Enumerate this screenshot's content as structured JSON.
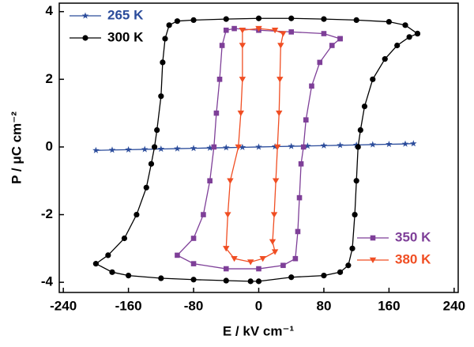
{
  "chart_data": {
    "type": "line",
    "xlabel": "E / kV cm⁻¹",
    "ylabel": "P / μC cm⁻²",
    "xlim": [
      -245,
      245
    ],
    "ylim": [
      -4.3,
      4.25
    ],
    "xticks": [
      -240,
      -160,
      -80,
      0,
      80,
      160,
      240
    ],
    "yticks": [
      -4,
      -2,
      0,
      2,
      4
    ],
    "series": [
      {
        "name": "265 K",
        "color": "#2b4c9b",
        "marker": "star",
        "legend": "upper left",
        "x": [
          -200,
          -180,
          -160,
          -140,
          -120,
          -100,
          -80,
          -60,
          -40,
          -20,
          0,
          20,
          40,
          60,
          80,
          100,
          120,
          140,
          160,
          180,
          190
        ],
        "values": [
          -0.1,
          -0.09,
          -0.08,
          -0.07,
          -0.06,
          -0.05,
          -0.04,
          -0.03,
          -0.02,
          -0.01,
          0,
          0.01,
          0.02,
          0.03,
          0.04,
          0.05,
          0.06,
          0.07,
          0.08,
          0.09,
          0.1
        ]
      },
      {
        "name": "300 K",
        "color": "#000000",
        "marker": "circle",
        "legend": "upper left",
        "x": [
          195,
          180,
          160,
          120,
          80,
          40,
          0,
          -40,
          -80,
          -100,
          -110,
          -115,
          -118,
          -120,
          -125,
          -128,
          -132,
          -138,
          -150,
          -165,
          -185,
          -200,
          -180,
          -160,
          -120,
          -80,
          -40,
          -10,
          0,
          40,
          80,
          100,
          110,
          115,
          118,
          120,
          122,
          125,
          130,
          140,
          155,
          170,
          185,
          195
        ],
        "values": [
          3.35,
          3.6,
          3.7,
          3.75,
          3.78,
          3.8,
          3.8,
          3.78,
          3.75,
          3.72,
          3.6,
          3.2,
          2.5,
          1.5,
          0.5,
          0,
          -0.5,
          -1.2,
          -2,
          -2.7,
          -3.2,
          -3.45,
          -3.7,
          -3.8,
          -3.88,
          -3.92,
          -3.95,
          -3.97,
          -3.97,
          -3.85,
          -3.8,
          -3.7,
          -3.5,
          -3,
          -2,
          -1,
          0,
          0.5,
          1.2,
          2,
          2.6,
          3,
          3.25,
          3.35
        ]
      },
      {
        "name": "350 K",
        "color": "#7e3f98",
        "marker": "square",
        "legend": "lower right",
        "x": [
          100,
          80,
          40,
          0,
          -30,
          -40,
          -45,
          -48,
          -52,
          -55,
          -60,
          -68,
          -80,
          -100,
          -80,
          -40,
          0,
          30,
          45,
          48,
          50,
          52,
          55,
          58,
          65,
          75,
          90,
          100
        ],
        "values": [
          3.2,
          3.35,
          3.4,
          3.45,
          3.5,
          3.45,
          3.0,
          2.0,
          1.0,
          0,
          -1,
          -2,
          -2.7,
          -3.2,
          -3.45,
          -3.6,
          -3.6,
          -3.5,
          -3.3,
          -2.5,
          -1.5,
          -0.5,
          0,
          0.8,
          1.8,
          2.5,
          3.0,
          3.2
        ]
      },
      {
        "name": "380 K",
        "color": "#f04e23",
        "marker": "triangle-down",
        "legend": "lower right",
        "x": [
          -20,
          0,
          20,
          30,
          27,
          26,
          25,
          23,
          21,
          19,
          17,
          20,
          5,
          -10,
          -30,
          -40,
          -38,
          -35,
          -25,
          -22,
          -20,
          -20,
          -20
        ],
        "values": [
          3.45,
          3.5,
          3.45,
          3.35,
          3.0,
          2.0,
          1.0,
          0,
          -1,
          -2,
          -2.8,
          -3.1,
          -3.3,
          -3.4,
          -3.3,
          -3.0,
          -2.0,
          -1.0,
          0,
          1.0,
          2.0,
          3.0,
          3.45
        ]
      }
    ]
  }
}
